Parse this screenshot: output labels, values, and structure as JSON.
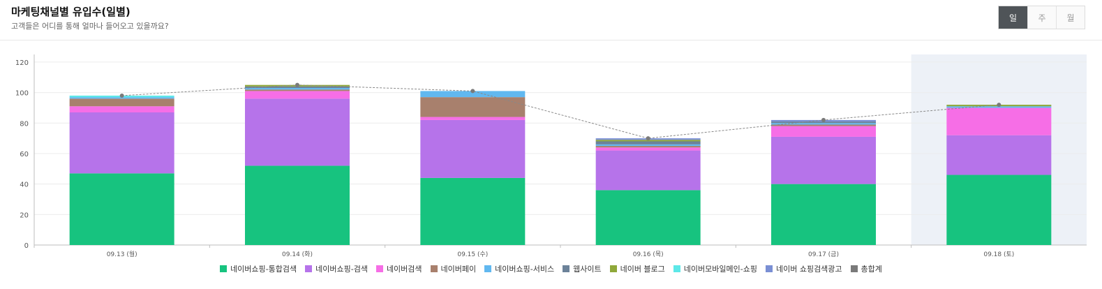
{
  "header": {
    "title": "마케팅채널별 유입수(일별)",
    "subtitle": "고객들은 어디를 통해 얼마나 들어오고 있을까요?"
  },
  "period_toggle": {
    "items": [
      {
        "label": "일",
        "active": true
      },
      {
        "label": "주",
        "active": false
      },
      {
        "label": "월",
        "active": false
      }
    ]
  },
  "chart_data": {
    "type": "bar",
    "stacked": true,
    "categories": [
      "09.13 (월)",
      "09.14 (화)",
      "09.15 (수)",
      "09.16 (목)",
      "09.17 (금)",
      "09.18 (토)"
    ],
    "highlighted_category": "09.18 (토)",
    "ylim": [
      0,
      125
    ],
    "yticks": [
      0,
      20,
      40,
      60,
      80,
      100,
      120
    ],
    "grid": true,
    "legend_position": "bottom-center",
    "series": [
      {
        "name": "네이버쇼핑-통합검색",
        "color": "#17c37f",
        "values": [
          47,
          52,
          44,
          36,
          40,
          46
        ]
      },
      {
        "name": "네이버쇼핑-검색",
        "color": "#b673ea",
        "values": [
          40,
          44,
          38,
          26,
          31,
          26
        ]
      },
      {
        "name": "네이버검색",
        "color": "#f66ee6",
        "values": [
          4,
          5,
          2,
          2,
          7,
          18
        ]
      },
      {
        "name": "네이버페이",
        "color": "#a8806d",
        "values": [
          5,
          1,
          13,
          1,
          1,
          0
        ]
      },
      {
        "name": "네이버쇼핑-서비스",
        "color": "#61b8f0",
        "values": [
          1,
          1,
          4,
          1,
          1,
          1
        ]
      },
      {
        "name": "웹사이트",
        "color": "#6c8299",
        "values": [
          0,
          1,
          0,
          2,
          1,
          0
        ]
      },
      {
        "name": "네이버 블로그",
        "color": "#8fa83a",
        "values": [
          0,
          1,
          0,
          1,
          0,
          1
        ]
      },
      {
        "name": "네이버모바일메인-쇼핑",
        "color": "#5de8e8",
        "values": [
          1,
          0,
          0,
          0,
          0,
          0
        ]
      },
      {
        "name": "네이버 쇼핑검색광고",
        "color": "#7a8fd4",
        "values": [
          0,
          0,
          0,
          1,
          1,
          0
        ]
      }
    ],
    "total_series": {
      "name": "총합계",
      "color": "#7a7a7a",
      "values": [
        98,
        105,
        101,
        70,
        82,
        92
      ]
    }
  }
}
